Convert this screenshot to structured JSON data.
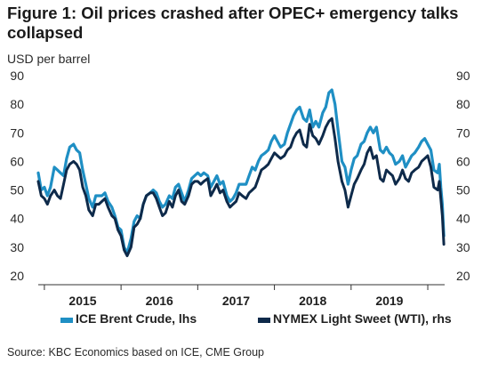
{
  "figure": {
    "title": "Figure 1: Oil prices crashed after OPEC+ emergency talks collapsed",
    "unit_label": "USD per barrel",
    "source": "Source: KBC Economics based on ICE, CME Group"
  },
  "chart_data": {
    "type": "line",
    "title": "Figure 1: Oil prices crashed after OPEC+ emergency talks collapsed",
    "ylabel": "USD per barrel",
    "ylim": [
      20,
      90
    ],
    "yticks": [
      20,
      30,
      40,
      50,
      60,
      70,
      80,
      90
    ],
    "xlim": [
      2014.92,
      2020.22
    ],
    "year_labels": [
      {
        "label": "2015",
        "x": 2015.5
      },
      {
        "label": "2016",
        "x": 2016.5
      },
      {
        "label": "2017",
        "x": 2017.5
      },
      {
        "label": "2018",
        "x": 2018.5
      },
      {
        "label": "2019",
        "x": 2019.5
      }
    ],
    "year_ticks": [
      2015,
      2016,
      2017,
      2018,
      2019,
      2020
    ],
    "legend_placement": "bottom",
    "grid": false,
    "series": [
      {
        "name": "ICE Brent Crude, lhs",
        "color": "#1f8fc4",
        "points": [
          [
            2014.92,
            56
          ],
          [
            2014.96,
            50
          ],
          [
            2015.0,
            51
          ],
          [
            2015.04,
            48
          ],
          [
            2015.08,
            51
          ],
          [
            2015.13,
            58
          ],
          [
            2015.17,
            57
          ],
          [
            2015.21,
            56
          ],
          [
            2015.25,
            55
          ],
          [
            2015.29,
            61
          ],
          [
            2015.33,
            65
          ],
          [
            2015.38,
            66
          ],
          [
            2015.42,
            64
          ],
          [
            2015.46,
            63
          ],
          [
            2015.5,
            57
          ],
          [
            2015.54,
            52
          ],
          [
            2015.58,
            47
          ],
          [
            2015.63,
            44
          ],
          [
            2015.67,
            48
          ],
          [
            2015.71,
            48
          ],
          [
            2015.75,
            48
          ],
          [
            2015.79,
            49
          ],
          [
            2015.83,
            46
          ],
          [
            2015.88,
            44
          ],
          [
            2015.92,
            41
          ],
          [
            2015.96,
            37
          ],
          [
            2016.0,
            36
          ],
          [
            2016.04,
            30
          ],
          [
            2016.08,
            28
          ],
          [
            2016.13,
            33
          ],
          [
            2016.17,
            39
          ],
          [
            2016.21,
            41
          ],
          [
            2016.25,
            40
          ],
          [
            2016.29,
            45
          ],
          [
            2016.33,
            48
          ],
          [
            2016.38,
            49
          ],
          [
            2016.42,
            50
          ],
          [
            2016.46,
            49
          ],
          [
            2016.5,
            46
          ],
          [
            2016.54,
            44
          ],
          [
            2016.58,
            45
          ],
          [
            2016.63,
            48
          ],
          [
            2016.67,
            47
          ],
          [
            2016.71,
            51
          ],
          [
            2016.75,
            52
          ],
          [
            2016.79,
            49
          ],
          [
            2016.83,
            46
          ],
          [
            2016.88,
            50
          ],
          [
            2016.92,
            54
          ],
          [
            2016.96,
            55
          ],
          [
            2017.0,
            56
          ],
          [
            2017.04,
            55
          ],
          [
            2017.08,
            56
          ],
          [
            2017.13,
            55
          ],
          [
            2017.17,
            51
          ],
          [
            2017.21,
            53
          ],
          [
            2017.25,
            55
          ],
          [
            2017.29,
            52
          ],
          [
            2017.33,
            53
          ],
          [
            2017.38,
            48
          ],
          [
            2017.42,
            46
          ],
          [
            2017.46,
            47
          ],
          [
            2017.5,
            49
          ],
          [
            2017.54,
            52
          ],
          [
            2017.58,
            52
          ],
          [
            2017.63,
            52
          ],
          [
            2017.67,
            55
          ],
          [
            2017.71,
            58
          ],
          [
            2017.75,
            57
          ],
          [
            2017.79,
            60
          ],
          [
            2017.83,
            62
          ],
          [
            2017.88,
            63
          ],
          [
            2017.92,
            64
          ],
          [
            2017.96,
            67
          ],
          [
            2018.0,
            69
          ],
          [
            2018.04,
            67
          ],
          [
            2018.08,
            65
          ],
          [
            2018.13,
            66
          ],
          [
            2018.17,
            70
          ],
          [
            2018.21,
            73
          ],
          [
            2018.25,
            76
          ],
          [
            2018.29,
            78
          ],
          [
            2018.33,
            79
          ],
          [
            2018.38,
            75
          ],
          [
            2018.42,
            74
          ],
          [
            2018.46,
            78
          ],
          [
            2018.5,
            72
          ],
          [
            2018.54,
            74
          ],
          [
            2018.58,
            72
          ],
          [
            2018.63,
            77
          ],
          [
            2018.67,
            79
          ],
          [
            2018.71,
            84
          ],
          [
            2018.75,
            85
          ],
          [
            2018.79,
            80
          ],
          [
            2018.83,
            71
          ],
          [
            2018.88,
            60
          ],
          [
            2018.92,
            58
          ],
          [
            2018.96,
            52
          ],
          [
            2019.0,
            57
          ],
          [
            2019.04,
            61
          ],
          [
            2019.08,
            62
          ],
          [
            2019.13,
            66
          ],
          [
            2019.17,
            67
          ],
          [
            2019.21,
            70
          ],
          [
            2019.25,
            72
          ],
          [
            2019.29,
            70
          ],
          [
            2019.33,
            72
          ],
          [
            2019.38,
            64
          ],
          [
            2019.42,
            63
          ],
          [
            2019.46,
            65
          ],
          [
            2019.5,
            63
          ],
          [
            2019.54,
            62
          ],
          [
            2019.58,
            59
          ],
          [
            2019.63,
            60
          ],
          [
            2019.67,
            62
          ],
          [
            2019.71,
            58
          ],
          [
            2019.75,
            60
          ],
          [
            2019.79,
            62
          ],
          [
            2019.83,
            63
          ],
          [
            2019.88,
            65
          ],
          [
            2019.92,
            67
          ],
          [
            2019.96,
            68
          ],
          [
            2020.0,
            66
          ],
          [
            2020.04,
            64
          ],
          [
            2020.08,
            57
          ],
          [
            2020.13,
            56
          ],
          [
            2020.15,
            59
          ],
          [
            2020.17,
            51
          ],
          [
            2020.19,
            45
          ],
          [
            2020.21,
            34
          ]
        ]
      },
      {
        "name": "NYMEX Light Sweet (WTI), rhs",
        "color": "#0e2a4a",
        "points": [
          [
            2014.92,
            53
          ],
          [
            2014.96,
            48
          ],
          [
            2015.0,
            47
          ],
          [
            2015.04,
            45
          ],
          [
            2015.08,
            48
          ],
          [
            2015.13,
            50
          ],
          [
            2015.17,
            48
          ],
          [
            2015.21,
            47
          ],
          [
            2015.25,
            52
          ],
          [
            2015.29,
            57
          ],
          [
            2015.33,
            59
          ],
          [
            2015.38,
            60
          ],
          [
            2015.42,
            59
          ],
          [
            2015.46,
            57
          ],
          [
            2015.5,
            51
          ],
          [
            2015.54,
            48
          ],
          [
            2015.58,
            43
          ],
          [
            2015.63,
            41
          ],
          [
            2015.67,
            45
          ],
          [
            2015.71,
            45
          ],
          [
            2015.75,
            46
          ],
          [
            2015.79,
            47
          ],
          [
            2015.83,
            44
          ],
          [
            2015.88,
            41
          ],
          [
            2015.92,
            40
          ],
          [
            2015.96,
            36
          ],
          [
            2016.0,
            34
          ],
          [
            2016.04,
            29
          ],
          [
            2016.08,
            27
          ],
          [
            2016.13,
            30
          ],
          [
            2016.17,
            37
          ],
          [
            2016.21,
            38
          ],
          [
            2016.25,
            40
          ],
          [
            2016.29,
            45
          ],
          [
            2016.33,
            48
          ],
          [
            2016.38,
            49
          ],
          [
            2016.42,
            49
          ],
          [
            2016.46,
            47
          ],
          [
            2016.5,
            44
          ],
          [
            2016.54,
            41
          ],
          [
            2016.58,
            42
          ],
          [
            2016.63,
            46
          ],
          [
            2016.67,
            44
          ],
          [
            2016.71,
            48
          ],
          [
            2016.75,
            50
          ],
          [
            2016.79,
            46
          ],
          [
            2016.83,
            45
          ],
          [
            2016.88,
            48
          ],
          [
            2016.92,
            52
          ],
          [
            2016.96,
            53
          ],
          [
            2017.0,
            53
          ],
          [
            2017.04,
            52
          ],
          [
            2017.08,
            53
          ],
          [
            2017.13,
            54
          ],
          [
            2017.17,
            48
          ],
          [
            2017.21,
            50
          ],
          [
            2017.25,
            52
          ],
          [
            2017.29,
            49
          ],
          [
            2017.33,
            50
          ],
          [
            2017.38,
            46
          ],
          [
            2017.42,
            44
          ],
          [
            2017.46,
            45
          ],
          [
            2017.5,
            46
          ],
          [
            2017.54,
            49
          ],
          [
            2017.58,
            48
          ],
          [
            2017.63,
            47
          ],
          [
            2017.67,
            49
          ],
          [
            2017.71,
            50
          ],
          [
            2017.75,
            51
          ],
          [
            2017.79,
            54
          ],
          [
            2017.83,
            57
          ],
          [
            2017.88,
            58
          ],
          [
            2017.92,
            59
          ],
          [
            2017.96,
            61
          ],
          [
            2018.0,
            63
          ],
          [
            2018.04,
            62
          ],
          [
            2018.08,
            61
          ],
          [
            2018.13,
            62
          ],
          [
            2018.17,
            64
          ],
          [
            2018.21,
            65
          ],
          [
            2018.25,
            68
          ],
          [
            2018.29,
            70
          ],
          [
            2018.33,
            71
          ],
          [
            2018.38,
            66
          ],
          [
            2018.42,
            65
          ],
          [
            2018.46,
            73
          ],
          [
            2018.5,
            69
          ],
          [
            2018.54,
            68
          ],
          [
            2018.58,
            66
          ],
          [
            2018.63,
            69
          ],
          [
            2018.67,
            72
          ],
          [
            2018.71,
            74
          ],
          [
            2018.75,
            75
          ],
          [
            2018.79,
            68
          ],
          [
            2018.83,
            60
          ],
          [
            2018.88,
            53
          ],
          [
            2018.92,
            50
          ],
          [
            2018.96,
            44
          ],
          [
            2019.0,
            48
          ],
          [
            2019.04,
            52
          ],
          [
            2019.08,
            54
          ],
          [
            2019.13,
            57
          ],
          [
            2019.17,
            59
          ],
          [
            2019.21,
            63
          ],
          [
            2019.25,
            65
          ],
          [
            2019.29,
            61
          ],
          [
            2019.33,
            62
          ],
          [
            2019.38,
            54
          ],
          [
            2019.42,
            53
          ],
          [
            2019.46,
            57
          ],
          [
            2019.5,
            56
          ],
          [
            2019.54,
            55
          ],
          [
            2019.58,
            52
          ],
          [
            2019.63,
            54
          ],
          [
            2019.67,
            57
          ],
          [
            2019.71,
            54
          ],
          [
            2019.75,
            53
          ],
          [
            2019.79,
            56
          ],
          [
            2019.83,
            57
          ],
          [
            2019.88,
            58
          ],
          [
            2019.92,
            60
          ],
          [
            2019.96,
            61
          ],
          [
            2020.0,
            62
          ],
          [
            2020.04,
            58
          ],
          [
            2020.08,
            51
          ],
          [
            2020.13,
            50
          ],
          [
            2020.15,
            53
          ],
          [
            2020.17,
            47
          ],
          [
            2020.19,
            41
          ],
          [
            2020.21,
            31
          ]
        ]
      }
    ]
  }
}
